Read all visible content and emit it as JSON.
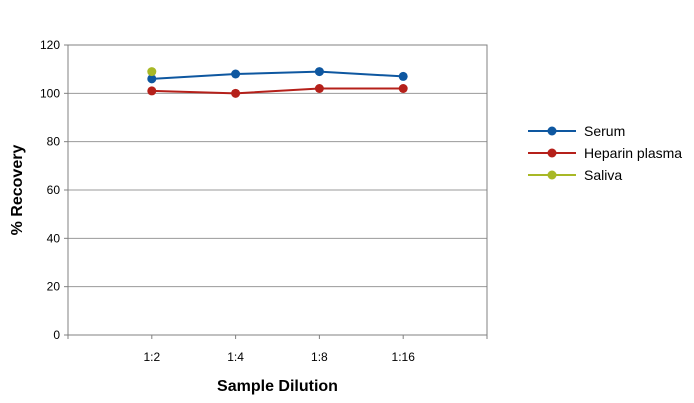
{
  "chart_data": {
    "type": "line",
    "categories": [
      "1:2",
      "1:4",
      "1:8",
      "1:16"
    ],
    "series": [
      {
        "name": "Serum",
        "color": "#0e57a0",
        "values": [
          106,
          108,
          109,
          107
        ]
      },
      {
        "name": "Heparin plasma",
        "color": "#b5201a",
        "values": [
          101,
          100,
          102,
          102
        ]
      },
      {
        "name": "Saliva",
        "color": "#a8b826",
        "values": [
          109,
          null,
          null,
          null
        ]
      }
    ],
    "xlabel": "Sample Dilution",
    "ylabel": "% Recovery",
    "ylim": [
      0,
      120
    ],
    "yticks": [
      0,
      20,
      40,
      60,
      80,
      100,
      120
    ],
    "grid": true,
    "legend_position": "right"
  }
}
